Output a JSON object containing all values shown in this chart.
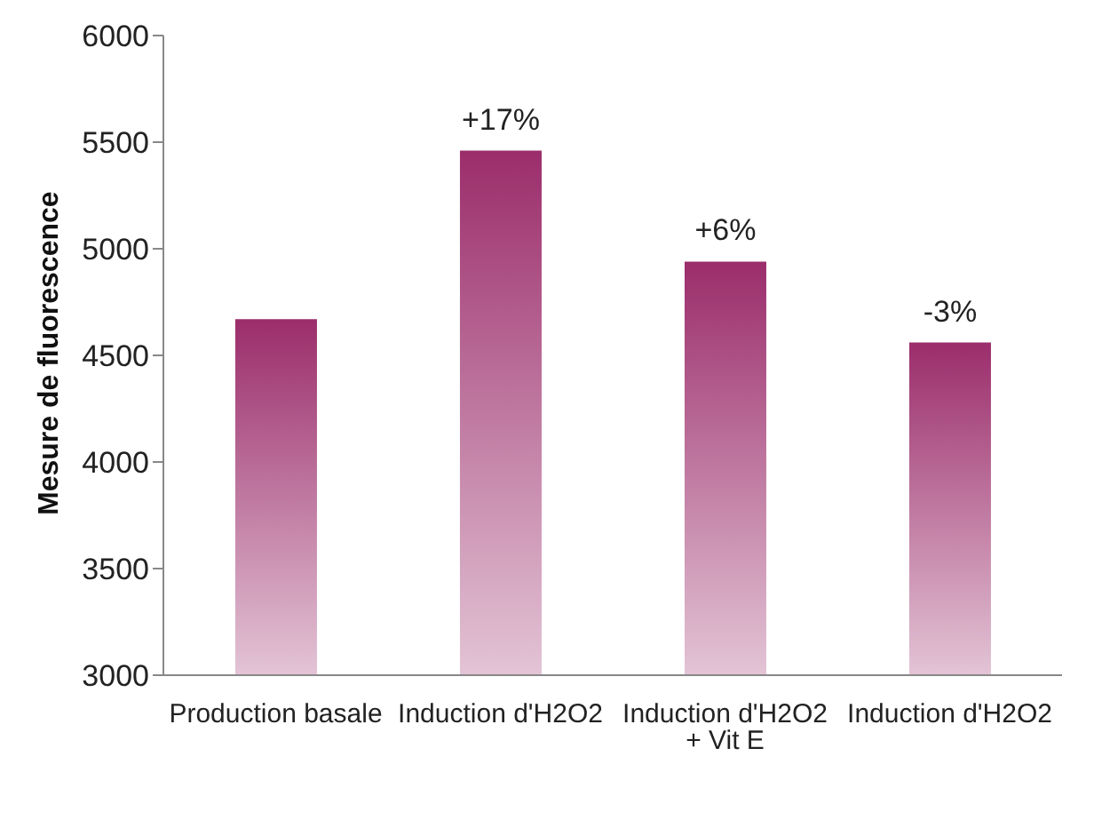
{
  "chart_data": {
    "type": "bar",
    "ylabel": "Mesure de fluorescence",
    "categories": [
      "Production basale",
      "Induction d'H2O2",
      "Induction d'H2O2 + Vit E",
      "Induction d'H2O2"
    ],
    "values": [
      4670,
      5460,
      4940,
      4560
    ],
    "annotations": [
      {
        "text": "+17%",
        "x": "Induction d'H2O2",
        "y": 5460
      },
      {
        "text": "+6%",
        "x": "Induction d'H2O2 + Vit E",
        "y": 4940
      },
      "-3%"
    ],
    "color": "#9b2d6b",
    "ylim": [
      3000,
      6000
    ],
    "yticks": [
      3000,
      3500,
      4000,
      4500,
      5000,
      5500,
      6000
    ],
    "grid": false,
    "legend": false
  }
}
